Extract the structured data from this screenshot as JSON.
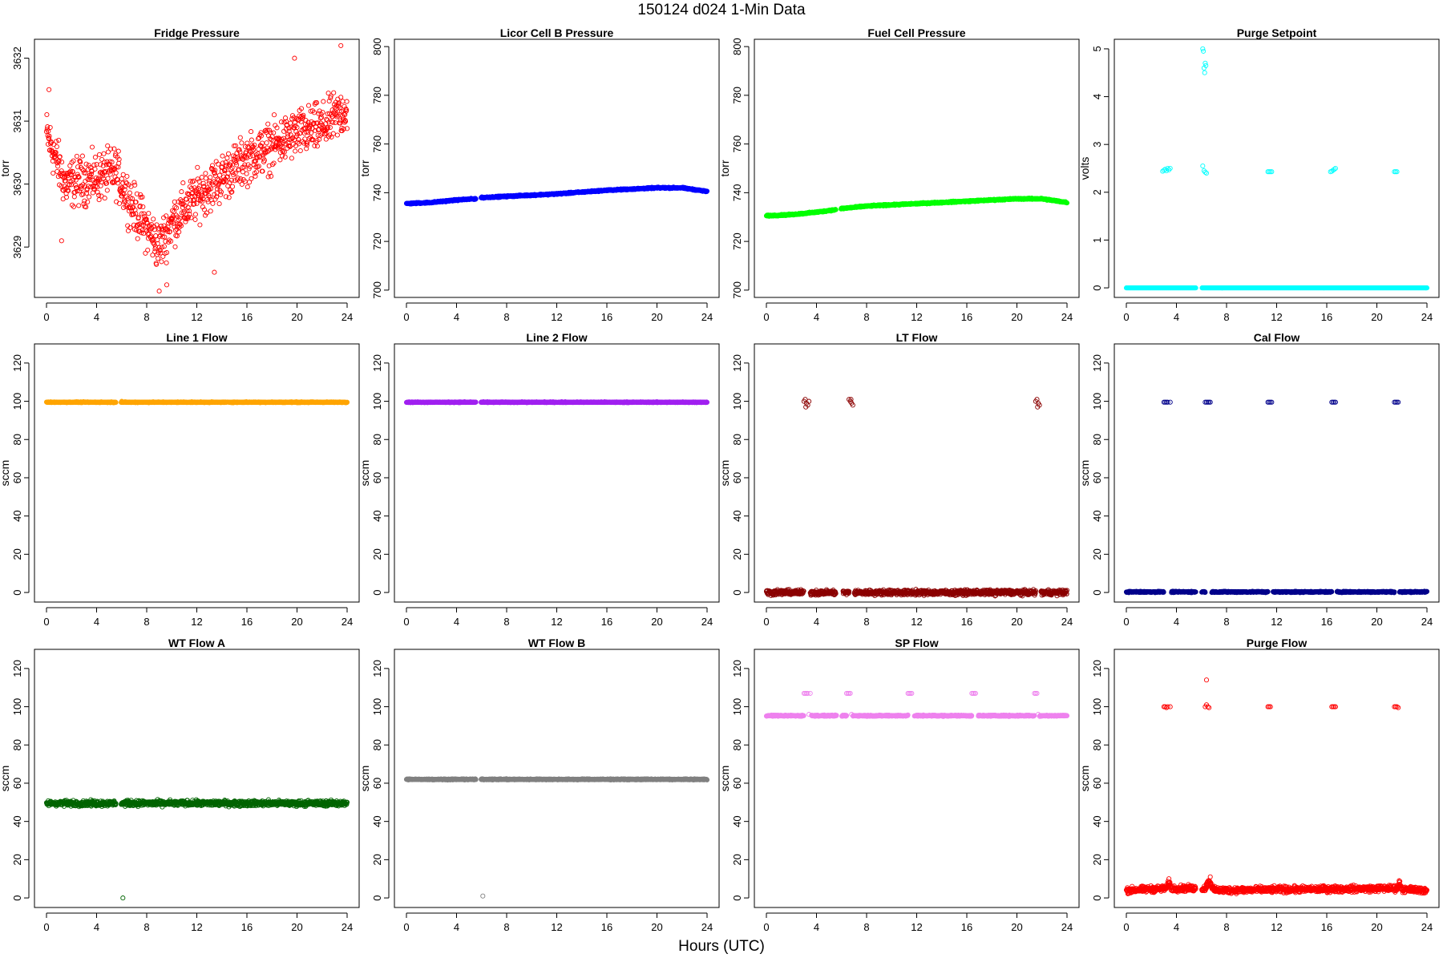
{
  "figure": {
    "title": "150124   d024   1-Min Data",
    "xlabel": "Hours (UTC)"
  },
  "chart_data": [
    {
      "type": "scatter",
      "title": "Fridge Pressure",
      "ylabel": "torr",
      "color": "#ff0000",
      "xlim": [
        -0.96,
        24.96
      ],
      "ylim": [
        3628.2,
        3632.3
      ],
      "xticks": [
        0,
        4,
        8,
        12,
        16,
        20,
        24
      ],
      "yticks": [
        3629,
        3630,
        3631,
        3632
      ],
      "trend": [
        [
          0,
          3630.8
        ],
        [
          1.5,
          3630.0
        ],
        [
          4,
          3630.1
        ],
        [
          5.5,
          3630.2
        ],
        [
          7,
          3629.6
        ],
        [
          9,
          3629.0
        ],
        [
          10,
          3629.4
        ],
        [
          12,
          3629.8
        ],
        [
          14,
          3630.1
        ],
        [
          16,
          3630.4
        ],
        [
          18,
          3630.6
        ],
        [
          20,
          3630.8
        ],
        [
          22,
          3630.9
        ],
        [
          24,
          3631.2
        ]
      ],
      "noise": 0.35,
      "step": 0.025,
      "extra_points": [
        [
          0.2,
          3631.5
        ],
        [
          9.6,
          3628.4
        ],
        [
          9.0,
          3628.3
        ],
        [
          19.8,
          3632.0
        ],
        [
          23.5,
          3632.2
        ],
        [
          13.4,
          3628.6
        ],
        [
          1.2,
          3629.1
        ]
      ]
    },
    {
      "type": "scatter",
      "title": "Licor Cell B Pressure",
      "ylabel": "torr",
      "color": "#0000ff",
      "xlim": [
        -0.96,
        24.96
      ],
      "ylim": [
        697,
        803
      ],
      "xticks": [
        0,
        4,
        8,
        12,
        16,
        20,
        24
      ],
      "yticks": [
        700,
        720,
        740,
        760,
        780,
        800
      ],
      "trend": [
        [
          0,
          735.5
        ],
        [
          2,
          736
        ],
        [
          4,
          737
        ],
        [
          5.5,
          737.5
        ],
        [
          6,
          738
        ],
        [
          8,
          738.5
        ],
        [
          12,
          739.5
        ],
        [
          16,
          741
        ],
        [
          20,
          742
        ],
        [
          22,
          742
        ],
        [
          24,
          740.5
        ]
      ],
      "noise": 0.25,
      "step": 0.02,
      "gaps": [
        [
          5.55,
          5.95
        ]
      ],
      "extra_points": [
        [
          6.1,
          738
        ]
      ]
    },
    {
      "type": "scatter",
      "title": "Fuel Cell Pressure",
      "ylabel": "torr",
      "color": "#00ff00",
      "xlim": [
        -0.96,
        24.96
      ],
      "ylim": [
        697,
        803
      ],
      "xticks": [
        0,
        4,
        8,
        12,
        16,
        20,
        24
      ],
      "yticks": [
        700,
        720,
        740,
        760,
        780,
        800
      ],
      "trend": [
        [
          0,
          730.5
        ],
        [
          2,
          731
        ],
        [
          4,
          732
        ],
        [
          5.5,
          733
        ],
        [
          6,
          733.5
        ],
        [
          8,
          734.5
        ],
        [
          12,
          735.5
        ],
        [
          16,
          736.5
        ],
        [
          20,
          737.5
        ],
        [
          22,
          737.5
        ],
        [
          24,
          736
        ]
      ],
      "noise": 0.25,
      "step": 0.02,
      "gaps": [
        [
          5.55,
          5.95
        ]
      ],
      "extra_points": []
    },
    {
      "type": "scatter",
      "title": "Purge Setpoint",
      "ylabel": "volts",
      "color": "#00ffff",
      "xlim": [
        -0.96,
        24.96
      ],
      "ylim": [
        -0.2,
        5.2
      ],
      "xticks": [
        0,
        4,
        8,
        12,
        16,
        20,
        24
      ],
      "yticks": [
        0,
        1,
        2,
        3,
        4,
        5
      ],
      "trend": [
        [
          0,
          0
        ],
        [
          24,
          0
        ]
      ],
      "noise": 0.0,
      "step": 0.02,
      "gaps": [
        [
          5.55,
          6.05
        ]
      ],
      "extra_points": [
        [
          2.9,
          2.44
        ],
        [
          3.0,
          2.46
        ],
        [
          3.1,
          2.48
        ],
        [
          3.2,
          2.45
        ],
        [
          3.3,
          2.5
        ],
        [
          3.4,
          2.47
        ],
        [
          3.5,
          2.5
        ],
        [
          6.1,
          2.55
        ],
        [
          6.2,
          2.45
        ],
        [
          6.3,
          2.42
        ],
        [
          6.4,
          2.4
        ],
        [
          6.2,
          4.6
        ],
        [
          6.3,
          4.7
        ],
        [
          6.1,
          5.0
        ],
        [
          6.15,
          4.95
        ],
        [
          6.35,
          4.65
        ],
        [
          6.25,
          4.5
        ],
        [
          6.05,
          0
        ],
        [
          11.3,
          2.43
        ],
        [
          11.4,
          2.43
        ],
        [
          11.5,
          2.43
        ],
        [
          11.6,
          2.43
        ],
        [
          16.3,
          2.43
        ],
        [
          16.4,
          2.44
        ],
        [
          16.5,
          2.46
        ],
        [
          16.6,
          2.48
        ],
        [
          16.7,
          2.5
        ],
        [
          21.4,
          2.43
        ],
        [
          21.5,
          2.43
        ],
        [
          21.6,
          2.43
        ]
      ]
    },
    {
      "type": "scatter",
      "title": "Line 1 Flow",
      "ylabel": "sccm",
      "color": "#ffa500",
      "xlim": [
        -0.96,
        24.96
      ],
      "ylim": [
        -5,
        130
      ],
      "xticks": [
        0,
        4,
        8,
        12,
        16,
        20,
        24
      ],
      "yticks": [
        0,
        20,
        40,
        60,
        80,
        100,
        120
      ],
      "trend": [
        [
          0,
          99.5
        ],
        [
          24,
          99.5
        ]
      ],
      "noise": 0.2,
      "step": 0.02,
      "gaps": [
        [
          5.55,
          5.95
        ]
      ],
      "extra_points": [
        [
          6.0,
          100
        ]
      ]
    },
    {
      "type": "scatter",
      "title": "Line 2 Flow",
      "ylabel": "sccm",
      "color": "#a020f0",
      "xlim": [
        -0.96,
        24.96
      ],
      "ylim": [
        -5,
        130
      ],
      "xticks": [
        0,
        4,
        8,
        12,
        16,
        20,
        24
      ],
      "yticks": [
        0,
        20,
        40,
        60,
        80,
        100,
        120
      ],
      "trend": [
        [
          0,
          99.5
        ],
        [
          24,
          99.5
        ]
      ],
      "noise": 0.2,
      "step": 0.02,
      "gaps": [
        [
          5.55,
          5.95
        ]
      ],
      "extra_points": []
    },
    {
      "type": "scatter",
      "title": "LT Flow",
      "ylabel": "sccm",
      "color": "#8b0000",
      "xlim": [
        -0.96,
        24.96
      ],
      "ylim": [
        -5,
        130
      ],
      "xticks": [
        0,
        4,
        8,
        12,
        16,
        20,
        24
      ],
      "yticks": [
        0,
        20,
        40,
        60,
        80,
        100,
        120
      ],
      "trend": [
        [
          0,
          0
        ],
        [
          24,
          0
        ]
      ],
      "noise": 1.2,
      "step": 0.02,
      "gaps": [
        [
          5.55,
          6.1
        ],
        [
          3.0,
          3.5
        ],
        [
          6.6,
          7.0
        ],
        [
          21.5,
          21.9
        ]
      ],
      "extra_points": [
        [
          3.0,
          100
        ],
        [
          3.1,
          101
        ],
        [
          3.2,
          99
        ],
        [
          3.3,
          98
        ],
        [
          3.4,
          100
        ],
        [
          3.15,
          97
        ],
        [
          6.6,
          101
        ],
        [
          6.7,
          100
        ],
        [
          6.8,
          99
        ],
        [
          6.9,
          98
        ],
        [
          6.75,
          101
        ],
        [
          21.5,
          100
        ],
        [
          21.6,
          101
        ],
        [
          21.7,
          99
        ],
        [
          21.8,
          98
        ],
        [
          21.65,
          97
        ]
      ]
    },
    {
      "type": "scatter",
      "title": "Cal Flow",
      "ylabel": "sccm",
      "color": "#00008b",
      "xlim": [
        -0.96,
        24.96
      ],
      "ylim": [
        -5,
        130
      ],
      "xticks": [
        0,
        4,
        8,
        12,
        16,
        20,
        24
      ],
      "yticks": [
        0,
        20,
        40,
        60,
        80,
        100,
        120
      ],
      "trend": [
        [
          0,
          0.3
        ],
        [
          24,
          0.3
        ]
      ],
      "noise": 0.3,
      "step": 0.02,
      "gaps": [
        [
          5.55,
          6.0
        ],
        [
          3.0,
          3.6
        ],
        [
          6.3,
          6.8
        ],
        [
          11.3,
          11.7
        ],
        [
          16.4,
          16.8
        ],
        [
          21.4,
          21.8
        ]
      ],
      "extra_points": [
        [
          3.0,
          99.5
        ],
        [
          3.1,
          99.5
        ],
        [
          3.2,
          99.5
        ],
        [
          3.3,
          99.5
        ],
        [
          3.5,
          99.5
        ],
        [
          6.3,
          99.5
        ],
        [
          6.4,
          99.5
        ],
        [
          6.5,
          99.5
        ],
        [
          6.6,
          99.5
        ],
        [
          6.7,
          99.5
        ],
        [
          11.3,
          99.5
        ],
        [
          11.4,
          99.5
        ],
        [
          11.5,
          99.5
        ],
        [
          11.6,
          99.5
        ],
        [
          16.4,
          99.5
        ],
        [
          16.5,
          99.5
        ],
        [
          16.6,
          99.5
        ],
        [
          16.7,
          99.5
        ],
        [
          21.4,
          99.5
        ],
        [
          21.5,
          99.5
        ],
        [
          21.6,
          99.5
        ],
        [
          21.7,
          99.5
        ]
      ]
    },
    {
      "type": "scatter",
      "title": "WT Flow A",
      "ylabel": "sccm",
      "color": "#006400",
      "xlim": [
        -0.96,
        24.96
      ],
      "ylim": [
        -5,
        130
      ],
      "xticks": [
        0,
        4,
        8,
        12,
        16,
        20,
        24
      ],
      "yticks": [
        0,
        20,
        40,
        60,
        80,
        100,
        120
      ],
      "trend": [
        [
          0,
          49.5
        ],
        [
          24,
          49.5
        ]
      ],
      "noise": 1.3,
      "step": 0.02,
      "gaps": [
        [
          5.55,
          5.95
        ]
      ],
      "extra_points": [
        [
          6.1,
          0
        ]
      ]
    },
    {
      "type": "scatter",
      "title": "WT Flow B",
      "ylabel": "sccm",
      "color": "#808080",
      "xlim": [
        -0.96,
        24.96
      ],
      "ylim": [
        -5,
        130
      ],
      "xticks": [
        0,
        4,
        8,
        12,
        16,
        20,
        24
      ],
      "yticks": [
        0,
        20,
        40,
        60,
        80,
        100,
        120
      ],
      "trend": [
        [
          0,
          62
        ],
        [
          24,
          62
        ]
      ],
      "noise": 0.25,
      "step": 0.02,
      "gaps": [
        [
          5.55,
          5.95
        ]
      ],
      "extra_points": [
        [
          6.1,
          1
        ]
      ]
    },
    {
      "type": "scatter",
      "title": "SP Flow",
      "ylabel": "sccm",
      "color": "#ee82ee",
      "xlim": [
        -0.96,
        24.96
      ],
      "ylim": [
        -5,
        130
      ],
      "xticks": [
        0,
        4,
        8,
        12,
        16,
        20,
        24
      ],
      "yticks": [
        0,
        20,
        40,
        60,
        80,
        100,
        120
      ],
      "trend": [
        [
          0,
          95.3
        ],
        [
          24,
          95.3
        ]
      ],
      "noise": 0.3,
      "step": 0.02,
      "gaps": [
        [
          3.0,
          3.6
        ],
        [
          5.6,
          6.0
        ],
        [
          6.4,
          6.9
        ],
        [
          11.3,
          11.8
        ],
        [
          16.4,
          16.9
        ],
        [
          21.4,
          21.8
        ]
      ],
      "extra_points": [
        [
          3.0,
          107
        ],
        [
          3.1,
          107
        ],
        [
          3.2,
          107
        ],
        [
          3.3,
          107
        ],
        [
          3.5,
          107
        ],
        [
          3.4,
          96
        ],
        [
          6.4,
          107
        ],
        [
          6.5,
          107
        ],
        [
          6.6,
          107
        ],
        [
          6.7,
          107
        ],
        [
          6.8,
          96
        ],
        [
          11.3,
          107
        ],
        [
          11.4,
          107
        ],
        [
          11.5,
          107
        ],
        [
          11.6,
          107
        ],
        [
          16.4,
          107
        ],
        [
          16.5,
          107
        ],
        [
          16.6,
          107
        ],
        [
          16.7,
          107
        ],
        [
          21.4,
          107
        ],
        [
          21.5,
          107
        ],
        [
          21.6,
          107
        ],
        [
          21.7,
          96
        ],
        [
          6.1,
          95
        ]
      ]
    },
    {
      "type": "scatter",
      "title": "Purge Flow",
      "ylabel": "sccm",
      "color": "#ff0000",
      "xlim": [
        -0.96,
        24.96
      ],
      "ylim": [
        -5,
        130
      ],
      "xticks": [
        0,
        4,
        8,
        12,
        16,
        20,
        24
      ],
      "yticks": [
        0,
        20,
        40,
        60,
        80,
        100,
        120
      ],
      "trend": [
        [
          0,
          4
        ],
        [
          3.2,
          5
        ],
        [
          3.4,
          8
        ],
        [
          3.6,
          5
        ],
        [
          6.3,
          5
        ],
        [
          6.6,
          9
        ],
        [
          7.0,
          4
        ],
        [
          21.6,
          5
        ],
        [
          21.8,
          8
        ],
        [
          22.0,
          4.5
        ],
        [
          24,
          4
        ]
      ],
      "noise": 1.5,
      "step": 0.02,
      "gaps": [
        [
          5.55,
          6.0
        ]
      ],
      "extra_points": [
        [
          3.0,
          100
        ],
        [
          3.1,
          100
        ],
        [
          3.2,
          99.5
        ],
        [
          3.3,
          100
        ],
        [
          3.5,
          100
        ],
        [
          6.3,
          100
        ],
        [
          6.4,
          101
        ],
        [
          6.5,
          100
        ],
        [
          6.6,
          99.5
        ],
        [
          6.4,
          114
        ],
        [
          11.3,
          100
        ],
        [
          11.4,
          100
        ],
        [
          11.5,
          100
        ],
        [
          16.4,
          100
        ],
        [
          16.5,
          100
        ],
        [
          16.6,
          100
        ],
        [
          16.7,
          100
        ],
        [
          21.4,
          100
        ],
        [
          21.5,
          100
        ],
        [
          21.6,
          100
        ],
        [
          21.7,
          99.5
        ],
        [
          3.4,
          10
        ],
        [
          6.7,
          11
        ]
      ]
    }
  ]
}
